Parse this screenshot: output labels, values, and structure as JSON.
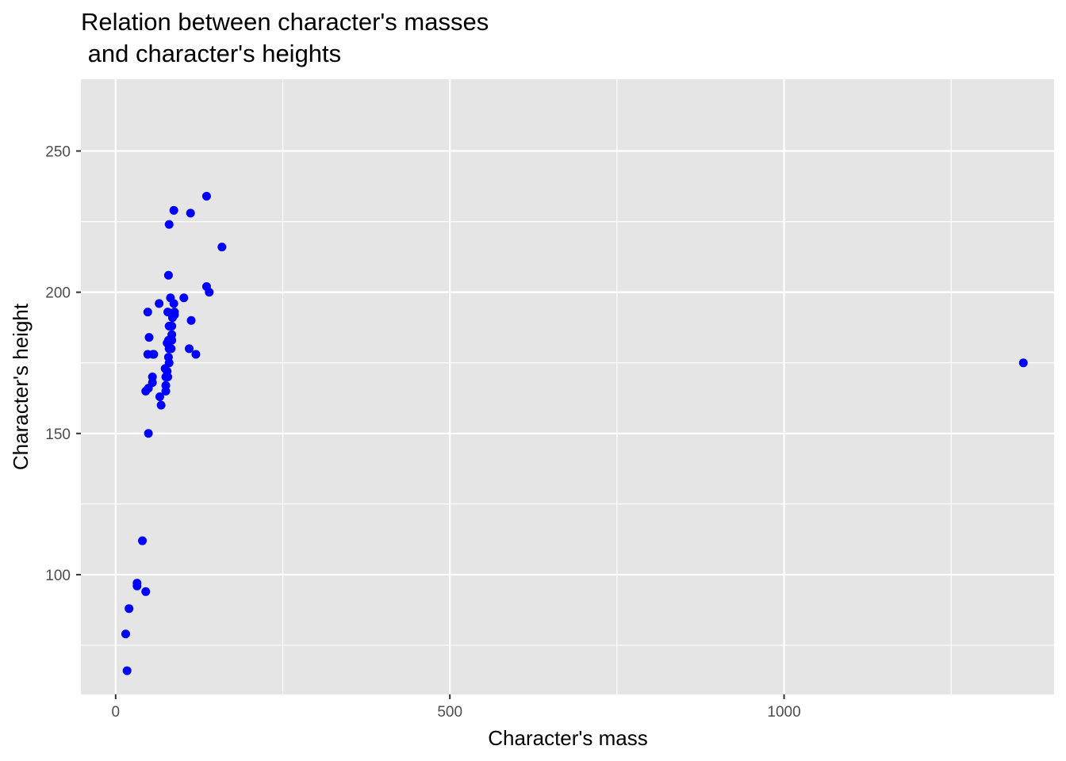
{
  "chart_data": {
    "type": "scatter",
    "title_lines": [
      "Relation between character's masses",
      " and character's heights"
    ],
    "xlabel": "Character's mass",
    "ylabel": "Character's height",
    "xlim": [
      -52,
      1404
    ],
    "ylim": [
      57.6,
      275.4
    ],
    "x_ticks": [
      0,
      500,
      1000
    ],
    "x_tick_labels": [
      "0",
      "500",
      "1000"
    ],
    "x_minor_ticks": [
      250,
      750,
      1250
    ],
    "y_ticks": [
      100,
      150,
      200,
      250
    ],
    "y_tick_labels": [
      "100",
      "150",
      "200",
      "250"
    ],
    "y_minor_ticks": [
      75,
      125,
      175,
      225
    ],
    "grid": true,
    "point_color": "#0000ff",
    "panel_color": "#e5e5e5",
    "grid_color": "#ffffff",
    "points": [
      {
        "x": 77,
        "y": 172
      },
      {
        "x": 75,
        "y": 167
      },
      {
        "x": 32,
        "y": 96
      },
      {
        "x": 136,
        "y": 202
      },
      {
        "x": 49,
        "y": 150
      },
      {
        "x": 120,
        "y": 178
      },
      {
        "x": 75,
        "y": 165
      },
      {
        "x": 32,
        "y": 97
      },
      {
        "x": 84,
        "y": 183
      },
      {
        "x": 77,
        "y": 182
      },
      {
        "x": 84,
        "y": 188
      },
      {
        "x": 112,
        "y": 228
      },
      {
        "x": 80,
        "y": 180
      },
      {
        "x": 74,
        "y": 173
      },
      {
        "x": 1358,
        "y": 175
      },
      {
        "x": 17,
        "y": 66
      },
      {
        "x": 78,
        "y": 170
      },
      {
        "x": 83,
        "y": 180
      },
      {
        "x": 20,
        "y": 88
      },
      {
        "x": 79,
        "y": 183
      },
      {
        "x": 68,
        "y": 160
      },
      {
        "x": 78,
        "y": 193
      },
      {
        "x": 85,
        "y": 191
      },
      {
        "x": 87,
        "y": 229
      },
      {
        "x": 80,
        "y": 224
      },
      {
        "x": 136,
        "y": 234
      },
      {
        "x": 65,
        "y": 196
      },
      {
        "x": 140,
        "y": 200
      },
      {
        "x": 45,
        "y": 94
      },
      {
        "x": 50,
        "y": 184
      },
      {
        "x": 48,
        "y": 193
      },
      {
        "x": 55,
        "y": 170
      },
      {
        "x": 56,
        "y": 178
      },
      {
        "x": 113,
        "y": 190
      },
      {
        "x": 82,
        "y": 198
      },
      {
        "x": 88,
        "y": 193
      },
      {
        "x": 88,
        "y": 192
      },
      {
        "x": 79,
        "y": 206
      },
      {
        "x": 80,
        "y": 175
      },
      {
        "x": 15,
        "y": 79
      },
      {
        "x": 48,
        "y": 178
      },
      {
        "x": 57,
        "y": 178
      },
      {
        "x": 159,
        "y": 216
      },
      {
        "x": 66,
        "y": 163
      },
      {
        "x": 45,
        "y": 165
      },
      {
        "x": 49,
        "y": 166
      },
      {
        "x": 55,
        "y": 168
      },
      {
        "x": 102,
        "y": 198
      },
      {
        "x": 87,
        "y": 196
      },
      {
        "x": 40,
        "y": 112
      },
      {
        "x": 84,
        "y": 185
      },
      {
        "x": 80,
        "y": 188
      },
      {
        "x": 79,
        "y": 177
      },
      {
        "x": 75,
        "y": 170
      },
      {
        "x": 110,
        "y": 180
      }
    ]
  }
}
